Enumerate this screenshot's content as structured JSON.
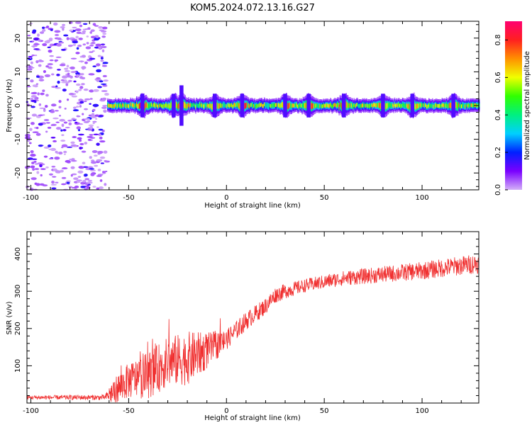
{
  "title": "KOM5.2024.072.13.16.G27",
  "chart_data": [
    {
      "type": "heatmap",
      "xlabel": "Height of straight line (km)",
      "ylabel": "Frequency (Hz)",
      "xlim": [
        -102,
        129
      ],
      "ylim": [
        -25,
        25
      ],
      "xticks": [
        -100,
        -50,
        0,
        50,
        100
      ],
      "yticks": [
        -20,
        -10,
        0,
        10,
        20
      ],
      "grid": false,
      "colorbar": {
        "label": "Normalized spectral amplitude",
        "range": [
          0.0,
          0.9
        ],
        "ticks": [
          "0.0",
          "0.2",
          "0.4",
          "0.6",
          "0.8"
        ],
        "colormap": [
          "#d4b0f8",
          "#7a00ff",
          "#0020ff",
          "#00d0ff",
          "#00f080",
          "#30ff00",
          "#f0ff00",
          "#ff9000",
          "#ff2020",
          "#ff0070"
        ]
      },
      "description_points": {
        "noise_region_x": [
          -102,
          -61
        ],
        "signal_start_x": -61,
        "signal_center_freq": 0,
        "signal_halfwidth_hz": 2,
        "peaks_x": [
          -43,
          -27,
          -23,
          -6,
          8,
          30,
          42,
          60,
          80,
          95,
          116
        ]
      }
    },
    {
      "type": "line",
      "xlabel": "Height of straight line (km)",
      "ylabel": "SNR (v/v)",
      "xlim": [
        -102,
        129
      ],
      "ylim": [
        0,
        460
      ],
      "xticks": [
        -100,
        -50,
        0,
        50,
        100
      ],
      "yticks": [
        100,
        200,
        300,
        400
      ],
      "color": "#f03030",
      "grid": false,
      "trend": {
        "x": [
          -102,
          -62,
          -58,
          -50,
          -40,
          -30,
          -20,
          -10,
          0,
          10,
          20,
          25,
          30,
          40,
          50,
          60,
          80,
          100,
          129
        ],
        "y": [
          15,
          15,
          30,
          60,
          75,
          110,
          120,
          140,
          170,
          220,
          260,
          290,
          300,
          315,
          325,
          335,
          345,
          355,
          375
        ]
      },
      "noise_amplitude": {
        "x": [
          -102,
          -62,
          -58,
          -40,
          -20,
          0,
          20,
          40,
          129
        ],
        "y": [
          6,
          8,
          40,
          70,
          80,
          30,
          25,
          20,
          30
        ]
      }
    }
  ]
}
